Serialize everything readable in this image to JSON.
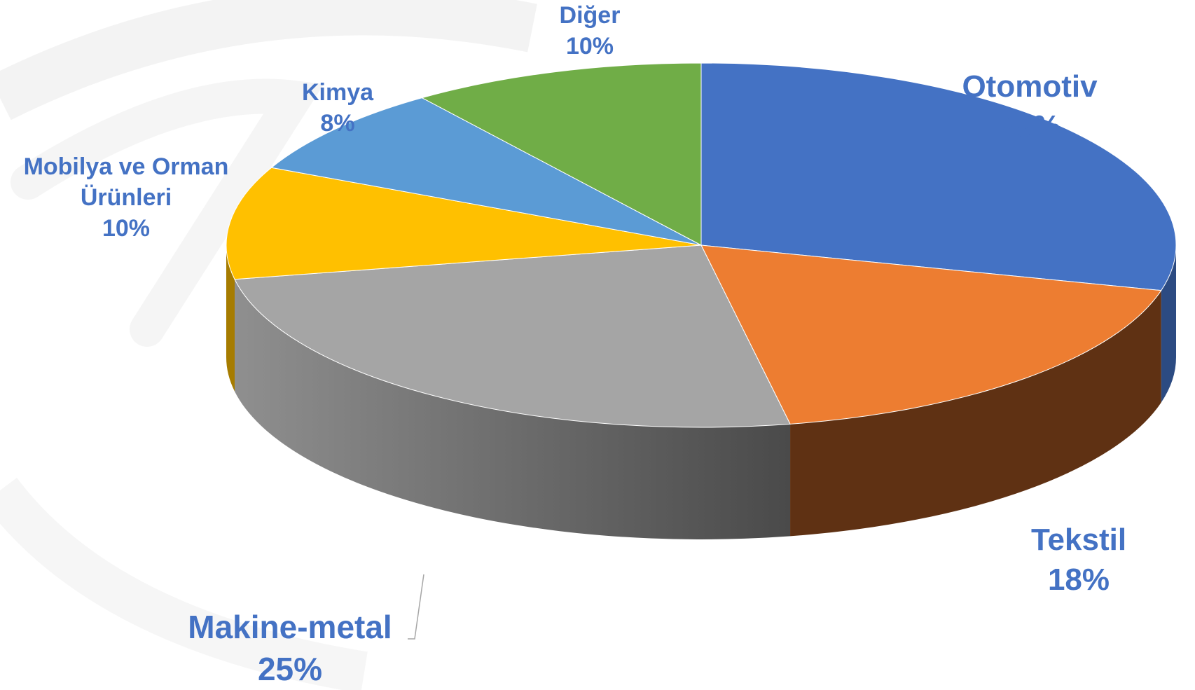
{
  "chart_data": {
    "type": "pie",
    "title": "",
    "legend": "none",
    "label_color": "#4472C4",
    "slices": [
      {
        "label": "Otomotiv",
        "value": 29,
        "value_label": "29%",
        "color": "#4472C4",
        "side_color": "#2C4B82"
      },
      {
        "label": "Tekstil",
        "value": 18,
        "value_label": "18%",
        "color": "#ED7D31",
        "side_color": "#5F3113"
      },
      {
        "label": "Makine-metal",
        "value": 25,
        "value_label": "25%",
        "color": "#A5A5A5",
        "side_color": "#6E6E6E"
      },
      {
        "label": "Mobilya ve Orman Ürünleri",
        "label_lines": [
          "Mobilya ve Orman",
          "Ürünleri"
        ],
        "value": 10,
        "value_label": "10%",
        "color": "#FFC000",
        "side_color": "#A67C00"
      },
      {
        "label": "Kimya",
        "value": 8,
        "value_label": "8%",
        "color": "#5B9BD5",
        "side_color": "#3A6A94"
      },
      {
        "label": "Diğer",
        "value": 10,
        "value_label": "10%",
        "color": "#70AD47",
        "side_color": "#4A752E"
      }
    ]
  }
}
